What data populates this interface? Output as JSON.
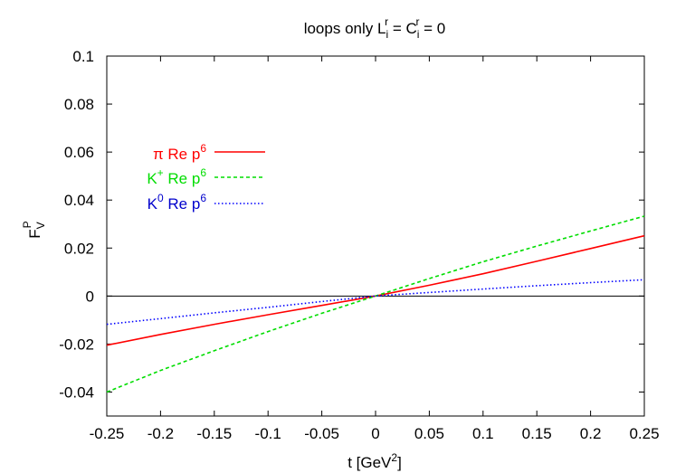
{
  "chart_data": {
    "type": "line",
    "title": {
      "main": "loops only L",
      "L_sup": "r",
      "L_sub": "i",
      "mid": " = C",
      "C_sup": "r",
      "C_sub": "i",
      "tail": " = 0"
    },
    "xlabel": {
      "main": "t   [GeV",
      "sup": "2",
      "tail": "]"
    },
    "ylabel": {
      "main": "F",
      "sup": "P",
      "sub": "V"
    },
    "xlim": [
      -0.25,
      0.25
    ],
    "ylim": [
      -0.05,
      0.1
    ],
    "xticks": [
      "-0.25",
      "-0.2",
      "-0.15",
      "-0.1",
      "-0.05",
      "0",
      "0.05",
      "0.1",
      "0.15",
      "0.2",
      "0.25"
    ],
    "yticks": [
      "-0.04",
      "-0.02",
      "0",
      "0.02",
      "0.04",
      "0.06",
      "0.08",
      "0.1"
    ],
    "zero_line": true,
    "legend_position": "upper-left",
    "series": [
      {
        "name": {
          "main": "π Re p",
          "sup": "6",
          "before_sup": ""
        },
        "label_parts": {
          "a": "π Re p",
          "sup": "6"
        },
        "color": "#ff0000",
        "dash": "solid",
        "x": [
          -0.25,
          -0.2,
          -0.15,
          -0.1,
          -0.05,
          0,
          0.05,
          0.1,
          0.15,
          0.2,
          0.25
        ],
        "y": [
          -0.0205,
          -0.016,
          -0.0118,
          -0.0078,
          -0.0039,
          0.0,
          0.0045,
          0.0093,
          0.0145,
          0.0198,
          0.0251
        ]
      },
      {
        "name": {
          "main": "K",
          "sup": "+",
          "tail": " Re p",
          "sup2": "6"
        },
        "label_parts": {
          "a": "K",
          "sup1": "+",
          "b": " Re p",
          "sup": "6"
        },
        "color": "#00dd00",
        "dash": "dashed",
        "x": [
          -0.25,
          -0.2,
          -0.15,
          -0.1,
          -0.05,
          0,
          0.05,
          0.1,
          0.15,
          0.2,
          0.25
        ],
        "y": [
          -0.04,
          -0.031,
          -0.0228,
          -0.0148,
          -0.0072,
          0.0,
          0.0073,
          0.0143,
          0.0208,
          0.0271,
          0.0333
        ]
      },
      {
        "name": {
          "main": "K",
          "sup": "0",
          "tail": " Re p",
          "sup2": "6"
        },
        "label_parts": {
          "a": "K",
          "sup1": "0",
          "b": " Re p",
          "sup": "6"
        },
        "color": "#0000ff",
        "dash": "dotted",
        "x": [
          -0.25,
          -0.2,
          -0.15,
          -0.1,
          -0.05,
          0,
          0.05,
          0.1,
          0.15,
          0.2,
          0.25
        ],
        "y": [
          -0.0118,
          -0.0094,
          -0.007,
          -0.0047,
          -0.0023,
          0.0,
          0.0015,
          0.0029,
          0.0043,
          0.0056,
          0.0068
        ]
      }
    ]
  }
}
